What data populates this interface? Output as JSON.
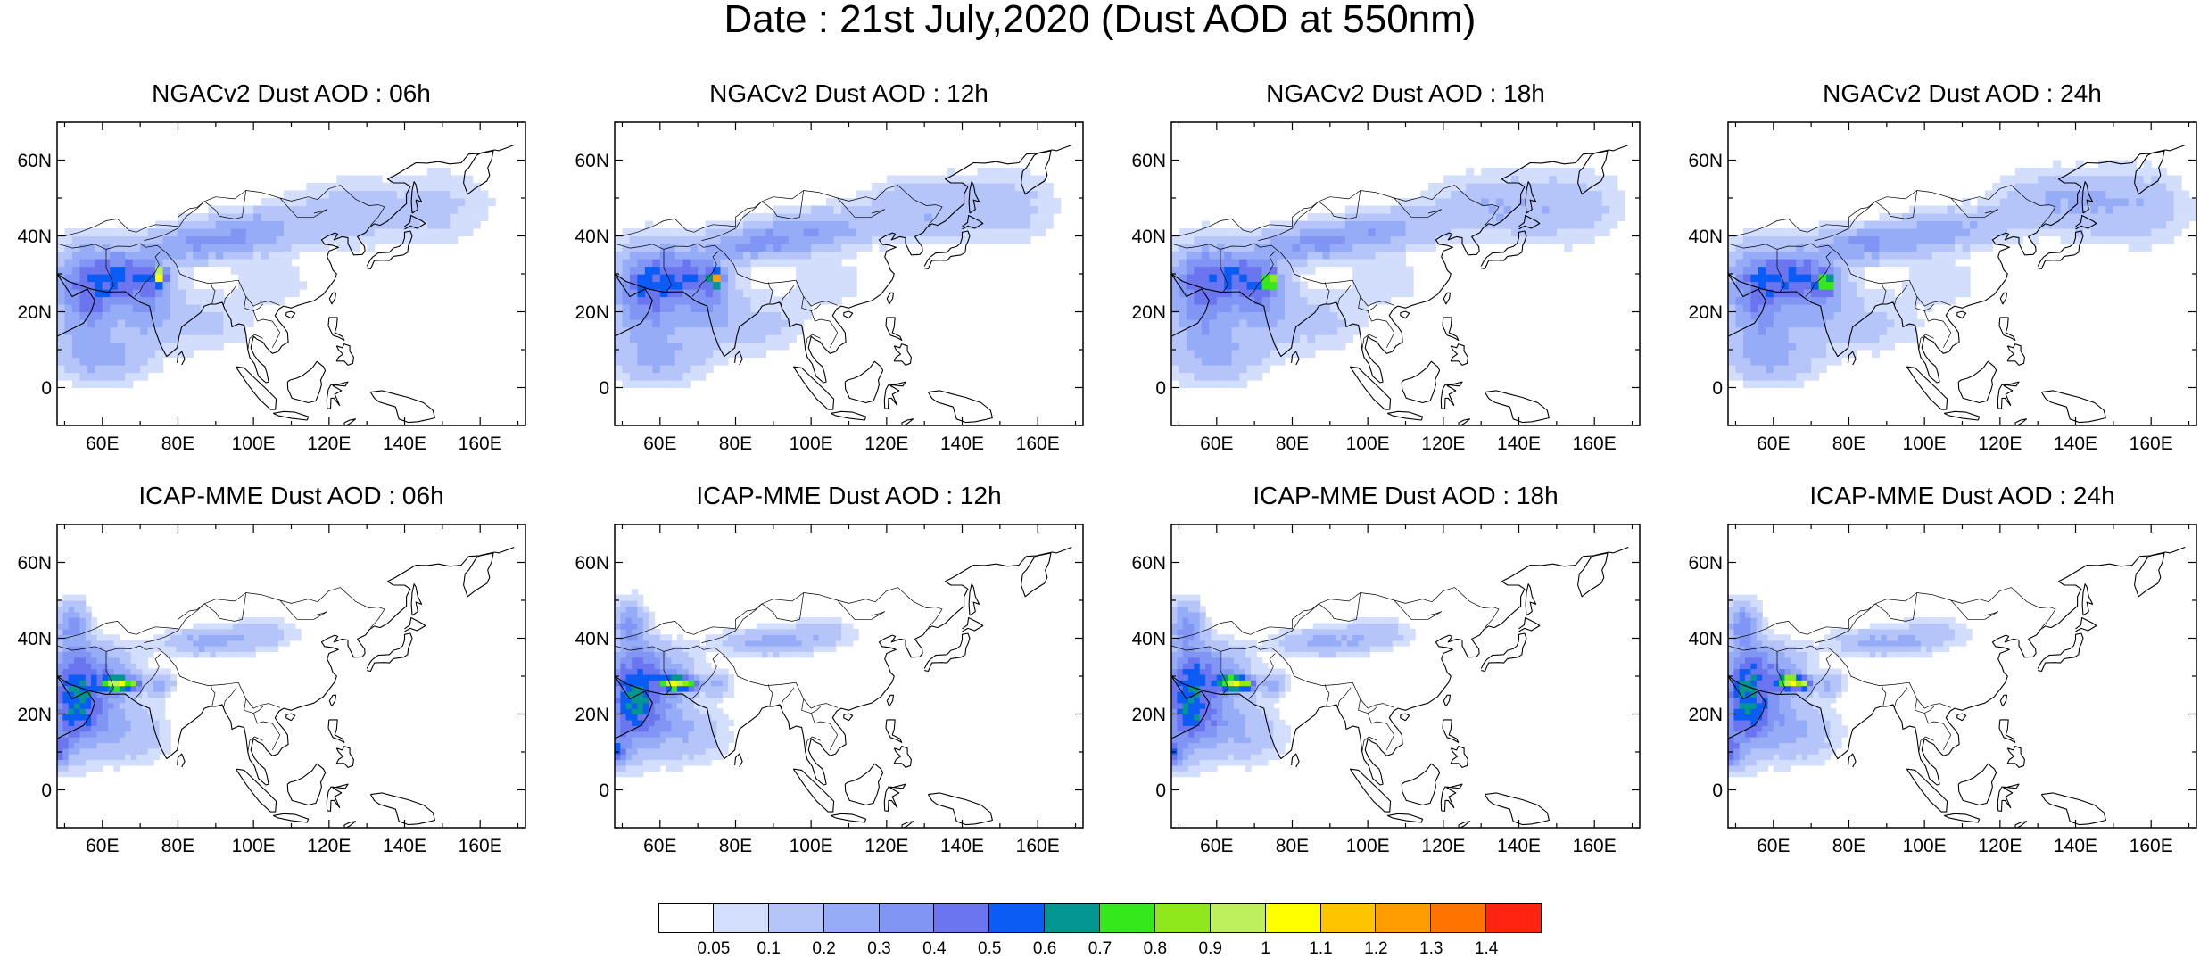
{
  "title": "Date : 21st July,2020 (Dust AOD at 550nm)",
  "panels": [
    {
      "title": "NGACv2 Dust AOD : 06h",
      "model": "ngac",
      "hour": 6
    },
    {
      "title": "NGACv2 Dust AOD : 12h",
      "model": "ngac",
      "hour": 12
    },
    {
      "title": "NGACv2 Dust AOD : 18h",
      "model": "ngac",
      "hour": 18
    },
    {
      "title": "NGACv2 Dust AOD : 24h",
      "model": "ngac",
      "hour": 24
    },
    {
      "title": "ICAP-MME Dust AOD : 06h",
      "model": "icap",
      "hour": 6
    },
    {
      "title": "ICAP-MME Dust AOD : 12h",
      "model": "icap",
      "hour": 12
    },
    {
      "title": "ICAP-MME Dust AOD : 18h",
      "model": "icap",
      "hour": 18
    },
    {
      "title": "ICAP-MME Dust AOD : 24h",
      "model": "icap",
      "hour": 24
    }
  ],
  "axes": {
    "lat_ticks": [
      "60N",
      "40N",
      "20N",
      "0"
    ],
    "lat_values": [
      60,
      40,
      20,
      0
    ],
    "lon_ticks": [
      "60E",
      "80E",
      "100E",
      "120E",
      "140E",
      "160E"
    ],
    "lon_values": [
      60,
      80,
      100,
      120,
      140,
      160
    ],
    "lon_range": [
      48,
      172
    ],
    "lat_range": [
      -10,
      70
    ]
  },
  "colorbar": {
    "labels": [
      "0.05",
      "0.1",
      "0.2",
      "0.3",
      "0.4",
      "0.5",
      "0.6",
      "0.7",
      "0.8",
      "0.9",
      "1",
      "1.1",
      "1.2",
      "1.3",
      "1.4"
    ],
    "colors": [
      "#ffffff",
      "#d3ddfc",
      "#b5c5fa",
      "#97acf7",
      "#8095f4",
      "#6a75ef",
      "#0b5bf5",
      "#03958f",
      "#35e81b",
      "#8ee81b",
      "#bdf05c",
      "#ffff00",
      "#ffc400",
      "#ff9d00",
      "#ff7300",
      "#ff2411"
    ]
  }
}
